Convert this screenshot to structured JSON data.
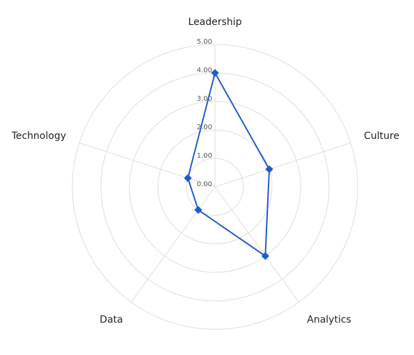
{
  "chart_data": {
    "type": "radar",
    "categories": [
      "Leadership",
      "Culture",
      "Analytics",
      "Data",
      "Technology"
    ],
    "values": [
      4,
      2,
      3,
      1,
      1
    ],
    "color": "#1f5bcc",
    "ylim": [
      0,
      5
    ],
    "yticks": [
      {
        "value": 0,
        "label": "0.00"
      },
      {
        "value": 1,
        "label": "1.00"
      },
      {
        "value": 2,
        "label": "2.00"
      },
      {
        "value": 3,
        "label": "3.00"
      },
      {
        "value": 4,
        "label": "4.00"
      },
      {
        "value": 5,
        "label": "5.00"
      }
    ],
    "grid": true
  }
}
